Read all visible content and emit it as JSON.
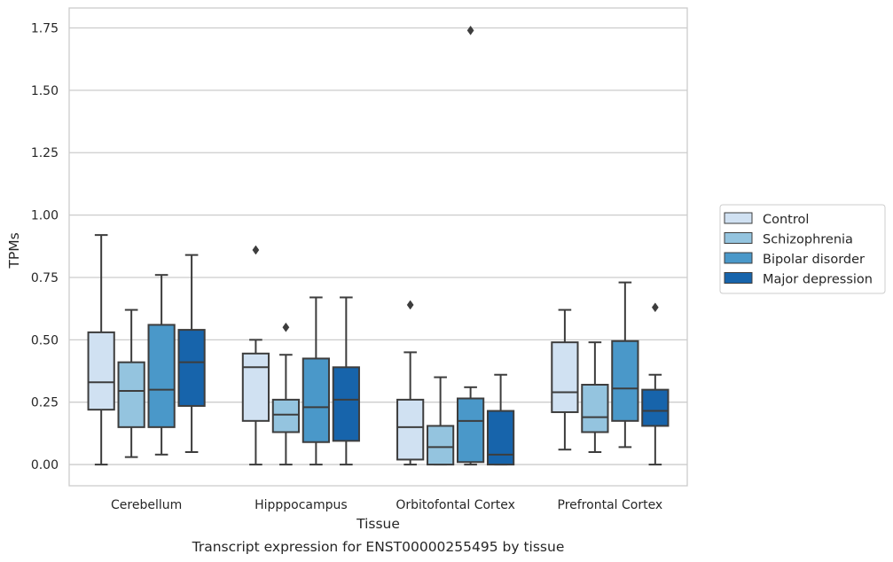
{
  "chart_data": {
    "type": "boxplot",
    "xlabel": "Tissue",
    "ylabel": "TPMs",
    "caption": "Transcript expression for ENST00000255495 by tissue",
    "ylim": [
      -0.085,
      1.83
    ],
    "yticks": [
      0.0,
      0.25,
      0.5,
      0.75,
      1.0,
      1.25,
      1.5,
      1.75
    ],
    "ytick_labels": [
      "0.00",
      "0.25",
      "0.50",
      "0.75",
      "1.00",
      "1.25",
      "1.50",
      "1.75"
    ],
    "grid": "horizontal",
    "legend_position": "right",
    "categories": [
      "Cerebellum",
      "Hipppocampus",
      "Orbitofontal Cortex",
      "Prefrontal Cortex"
    ],
    "series": [
      {
        "name": "Control",
        "color": "#d0e1f2",
        "boxes": [
          {
            "whislo": 0.0,
            "q1": 0.22,
            "med": 0.33,
            "q3": 0.53,
            "whishi": 0.92,
            "fliers": []
          },
          {
            "whislo": 0.0,
            "q1": 0.175,
            "med": 0.39,
            "q3": 0.445,
            "whishi": 0.5,
            "fliers": [
              0.86
            ]
          },
          {
            "whislo": 0.0,
            "q1": 0.02,
            "med": 0.15,
            "q3": 0.26,
            "whishi": 0.45,
            "fliers": [
              0.64
            ]
          },
          {
            "whislo": 0.06,
            "q1": 0.21,
            "med": 0.29,
            "q3": 0.49,
            "whishi": 0.62,
            "fliers": []
          }
        ]
      },
      {
        "name": "Schizophrenia",
        "color": "#94c4df",
        "boxes": [
          {
            "whislo": 0.03,
            "q1": 0.15,
            "med": 0.295,
            "q3": 0.41,
            "whishi": 0.62,
            "fliers": []
          },
          {
            "whislo": 0.0,
            "q1": 0.13,
            "med": 0.2,
            "q3": 0.26,
            "whishi": 0.44,
            "fliers": [
              0.55
            ]
          },
          {
            "whislo": 0.0,
            "q1": 0.0,
            "med": 0.07,
            "q3": 0.155,
            "whishi": 0.35,
            "fliers": []
          },
          {
            "whislo": 0.05,
            "q1": 0.13,
            "med": 0.19,
            "q3": 0.32,
            "whishi": 0.49,
            "fliers": []
          }
        ]
      },
      {
        "name": "Bipolar disorder",
        "color": "#4a98c9",
        "boxes": [
          {
            "whislo": 0.04,
            "q1": 0.15,
            "med": 0.3,
            "q3": 0.56,
            "whishi": 0.76,
            "fliers": []
          },
          {
            "whislo": 0.0,
            "q1": 0.09,
            "med": 0.23,
            "q3": 0.425,
            "whishi": 0.67,
            "fliers": []
          },
          {
            "whislo": 0.0,
            "q1": 0.01,
            "med": 0.175,
            "q3": 0.265,
            "whishi": 0.31,
            "fliers": [
              1.74
            ]
          },
          {
            "whislo": 0.07,
            "q1": 0.175,
            "med": 0.305,
            "q3": 0.495,
            "whishi": 0.73,
            "fliers": []
          }
        ]
      },
      {
        "name": "Major depression",
        "color": "#1764ab",
        "boxes": [
          {
            "whislo": 0.05,
            "q1": 0.235,
            "med": 0.41,
            "q3": 0.54,
            "whishi": 0.84,
            "fliers": []
          },
          {
            "whislo": 0.0,
            "q1": 0.095,
            "med": 0.26,
            "q3": 0.39,
            "whishi": 0.67,
            "fliers": []
          },
          {
            "whislo": 0.0,
            "q1": 0.0,
            "med": 0.04,
            "q3": 0.215,
            "whishi": 0.36,
            "fliers": []
          },
          {
            "whislo": 0.0,
            "q1": 0.155,
            "med": 0.215,
            "q3": 0.3,
            "whishi": 0.36,
            "fliers": [
              0.63
            ]
          }
        ]
      }
    ]
  }
}
